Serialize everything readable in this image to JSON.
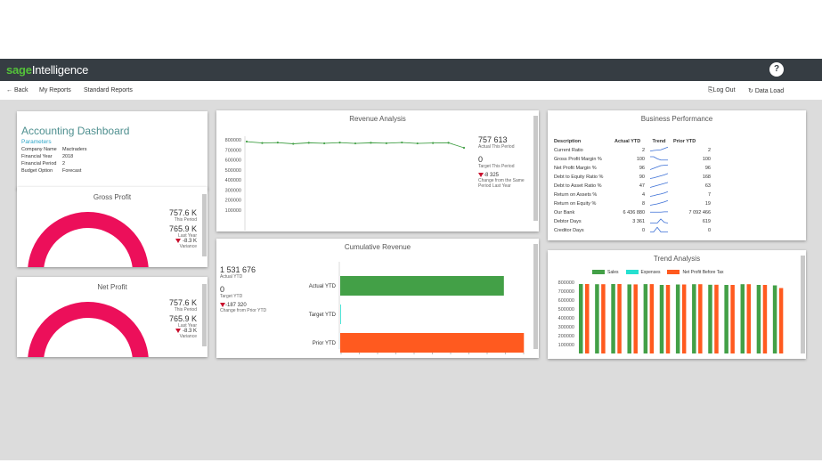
{
  "app": {
    "brand": "sage",
    "product": "Intelligence",
    "help_label": "?"
  },
  "nav": {
    "back": "← Back",
    "my_reports": "My Reports",
    "standard_reports": "Standard Reports",
    "logout": "Log Out",
    "data_load": "Data Load"
  },
  "dashboard": {
    "title": "Accounting Dashboard",
    "params_label": "Parameters",
    "params": [
      {
        "key": "Company Name",
        "value": "Mactraders"
      },
      {
        "key": "Financial Year",
        "value": "2018"
      },
      {
        "key": "Financial Period",
        "value": "2"
      },
      {
        "key": "Budget Option",
        "value": "Forecast"
      }
    ]
  },
  "gross_profit": {
    "title": "Gross Profit",
    "this_value": "757.6 K",
    "this_label": "This Period",
    "last_value": "765.9 K",
    "last_label": "Last Year",
    "variance_value": "-8.3 K",
    "variance_label": "Variance",
    "fraction": 0.99
  },
  "net_profit": {
    "title": "Net Profit",
    "this_value": "757.6 K",
    "this_label": "This Period",
    "last_value": "765.9 K",
    "last_label": "Last Year",
    "variance_value": "-8.3 K",
    "variance_label": "Variance",
    "fraction": 0.99
  },
  "revenue": {
    "title": "Revenue Analysis",
    "actual_value": "757 613",
    "actual_label": "Actual This Period",
    "target_value": "0",
    "target_label": "Target This Period",
    "change_value": "-8 325",
    "change_label": "Change from the Same Period Last Year",
    "ytick_labels": [
      "800000",
      "700000",
      "600000",
      "500000",
      "400000",
      "300000",
      "200000",
      "100000"
    ],
    "series": [
      782000,
      768000,
      772000,
      760000,
      770000,
      765000,
      772000,
      764000,
      770000,
      766000,
      773000,
      764000,
      768000,
      770000,
      720000
    ],
    "color": "#43a047"
  },
  "cumulative": {
    "title": "Cumulative Revenue",
    "actual_value": "1 531 676",
    "actual_label": "Actual YTD",
    "target_value": "0",
    "target_label": "Target YTD",
    "change_value": "-187 320",
    "change_label": "Change from Prior YTD",
    "bars": [
      {
        "label": "Actual YTD",
        "value": 1531676,
        "color": "#43a047"
      },
      {
        "label": "Target YTD",
        "value": 0,
        "color": "#26e0d0"
      },
      {
        "label": "Prior YTD",
        "value": 1718996,
        "color": "#ff5a1f"
      }
    ],
    "xmax": 1750000
  },
  "business": {
    "title": "Business Performance",
    "headers": [
      "Description",
      "Actual YTD",
      "Trend",
      "Prior YTD"
    ],
    "rows": [
      {
        "desc": "Current Ratio",
        "actual": "2",
        "prior": "2",
        "trend": [
          0.3,
          0.4,
          0.45,
          0.5,
          0.7,
          0.9
        ]
      },
      {
        "desc": "Gross Profit Margin %",
        "actual": "100",
        "prior": "100",
        "trend": [
          0.8,
          0.8,
          0.5,
          0.3,
          0.3,
          0.3
        ]
      },
      {
        "desc": "Net Profit Margin %",
        "actual": "96",
        "prior": "96",
        "trend": [
          0.2,
          0.4,
          0.6,
          0.8,
          0.85,
          0.9
        ]
      },
      {
        "desc": "Debt to Equity Ratio %",
        "actual": "90",
        "prior": "168",
        "trend": [
          0.2,
          0.3,
          0.45,
          0.6,
          0.75,
          0.95
        ]
      },
      {
        "desc": "Debt to Asset Ratio %",
        "actual": "47",
        "prior": "63",
        "trend": [
          0.2,
          0.35,
          0.5,
          0.65,
          0.8,
          0.95
        ]
      },
      {
        "desc": "Return on Assets %",
        "actual": "4",
        "prior": "7",
        "trend": [
          0.2,
          0.3,
          0.45,
          0.55,
          0.7,
          0.9
        ]
      },
      {
        "desc": "Return on Equity %",
        "actual": "8",
        "prior": "19",
        "trend": [
          0.2,
          0.3,
          0.4,
          0.55,
          0.7,
          0.9
        ]
      },
      {
        "desc": "Our Bank",
        "actual": "6 436 880",
        "prior": "7 092 466",
        "trend": [
          0.5,
          0.5,
          0.5,
          0.5,
          0.55,
          0.55
        ]
      },
      {
        "desc": "Debtor Days",
        "actual": "3 361",
        "prior": "619",
        "trend": [
          0.2,
          0.2,
          0.2,
          0.8,
          0.3,
          0.2
        ]
      },
      {
        "desc": "Creditor Days",
        "actual": "0",
        "prior": "0",
        "trend": [
          0.2,
          0.2,
          0.9,
          0.2,
          0.2,
          0.2
        ]
      }
    ],
    "trend_color": "#3b6fd6"
  },
  "trend": {
    "title": "Trend Analysis",
    "legend": [
      {
        "name": "Sales",
        "color": "#43a047"
      },
      {
        "name": "Expenses",
        "color": "#26e0d0"
      },
      {
        "name": "Net Profit Before Tax",
        "color": "#ff5a1f"
      }
    ],
    "ytick_labels": [
      "800000",
      "700000",
      "600000",
      "500000",
      "400000",
      "300000",
      "200000",
      "100000"
    ]
  },
  "chart_data": [
    {
      "type": "line",
      "title": "Revenue Analysis",
      "ylim": [
        0,
        800000
      ],
      "series": [
        {
          "name": "Revenue",
          "values": [
            782000,
            768000,
            772000,
            760000,
            770000,
            765000,
            772000,
            764000,
            770000,
            766000,
            773000,
            764000,
            768000,
            770000,
            720000
          ]
        }
      ]
    },
    {
      "type": "bar",
      "title": "Cumulative Revenue",
      "categories": [
        "Actual YTD",
        "Target YTD",
        "Prior YTD"
      ],
      "values": [
        1531676,
        0,
        1718996
      ]
    },
    {
      "type": "bar",
      "title": "Trend Analysis",
      "ylim": [
        0,
        800000
      ],
      "series": [
        {
          "name": "Sales",
          "values": [
            780000,
            778000,
            780000,
            776000,
            779000,
            770000,
            775000,
            778000,
            772000,
            770000,
            778000,
            770000,
            765000
          ]
        },
        {
          "name": "Expenses",
          "values": [
            0,
            0,
            0,
            0,
            0,
            0,
            0,
            0,
            0,
            0,
            0,
            0,
            0
          ]
        },
        {
          "name": "Net Profit Before Tax",
          "values": [
            780000,
            778000,
            780000,
            776000,
            779000,
            770000,
            775000,
            778000,
            772000,
            770000,
            778000,
            770000,
            735000
          ]
        }
      ]
    }
  ]
}
